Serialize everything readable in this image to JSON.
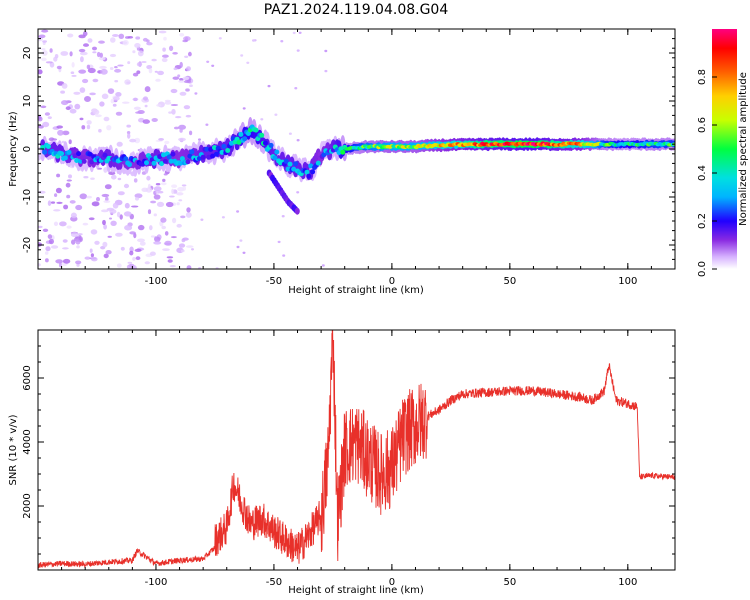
{
  "title": "PAZ1.2024.119.04.08.G04",
  "chart_data": [
    {
      "type": "heatmap",
      "xlabel": "Height of straight line (km)",
      "ylabel": "Frequency (Hz)",
      "xlim": [
        -150,
        120
      ],
      "ylim": [
        -25,
        25
      ],
      "xticks": [
        -100,
        -50,
        0,
        50,
        100
      ],
      "yticks": [
        -20,
        -10,
        0,
        10,
        20
      ],
      "colorbar": {
        "label": "Normalized spectral amplitude",
        "range": [
          0,
          1
        ],
        "ticks": [
          0.0,
          0.2,
          0.4,
          0.6,
          0.8
        ],
        "tick_labels": [
          "0.0",
          "0.2",
          "0.4",
          "0.6",
          "0.8"
        ],
        "colormap": [
          "#ffffff",
          "#d7b3ff",
          "#8a2be2",
          "#2000ff",
          "#00b4ff",
          "#00e0e0",
          "#00ff40",
          "#c8ff00",
          "#ffd000",
          "#ff6000",
          "#ff0000",
          "#ff0080"
        ]
      },
      "ridge": {
        "x": [
          -148,
          -140,
          -130,
          -120,
          -110,
          -100,
          -90,
          -80,
          -70,
          -65,
          -60,
          -55,
          -50,
          -45,
          -40,
          -35,
          -30,
          -25,
          -20,
          -10,
          0,
          10,
          20,
          40,
          60,
          80,
          90,
          100,
          110,
          120
        ],
        "frequency": [
          0,
          -1,
          -2,
          -2,
          -3,
          -2,
          -2,
          -1,
          0,
          2,
          4,
          2,
          -1,
          -3,
          -4,
          -5,
          -1,
          0,
          0,
          0.5,
          0.5,
          0.5,
          0.8,
          1,
          1,
          1,
          1,
          1,
          1,
          1
        ],
        "amplitude": [
          0.35,
          0.35,
          0.3,
          0.35,
          0.3,
          0.35,
          0.3,
          0.35,
          0.35,
          0.4,
          0.45,
          0.4,
          0.35,
          0.35,
          0.35,
          0.35,
          0.3,
          0.35,
          0.45,
          0.55,
          0.6,
          0.6,
          0.7,
          0.85,
          0.9,
          0.75,
          0.5,
          0.45,
          0.5,
          0.5
        ]
      },
      "branch": {
        "x": [
          -52,
          -48,
          -44,
          -40
        ],
        "frequency": [
          -5,
          -8,
          -11,
          -13
        ]
      }
    },
    {
      "type": "line",
      "xlabel": "Height of straight line (km)",
      "ylabel": "SNR (10 * v/v)",
      "xlim": [
        -150,
        120
      ],
      "ylim": [
        0,
        7500
      ],
      "xticks": [
        -100,
        -50,
        0,
        50,
        100
      ],
      "yticks": [
        2000,
        4000,
        6000
      ],
      "color": "#e8302a",
      "x": [
        -150,
        -140,
        -130,
        -120,
        -110,
        -108,
        -100,
        -90,
        -80,
        -75,
        -70,
        -67,
        -60,
        -55,
        -50,
        -45,
        -40,
        -35,
        -30,
        -27,
        -25,
        -23,
        -20,
        -15,
        -10,
        -5,
        0,
        5,
        10,
        15,
        20,
        25,
        30,
        40,
        50,
        60,
        70,
        80,
        85,
        90,
        92,
        95,
        100,
        104,
        105,
        110,
        120
      ],
      "y": [
        150,
        200,
        180,
        250,
        300,
        600,
        200,
        300,
        350,
        700,
        1100,
        2500,
        1200,
        1400,
        1000,
        700,
        400,
        900,
        1500,
        3500,
        7500,
        1500,
        3800,
        4000,
        3500,
        3000,
        3200,
        4200,
        4500,
        4800,
        5000,
        5300,
        5500,
        5550,
        5600,
        5600,
        5500,
        5400,
        5300,
        5600,
        6400,
        5300,
        5200,
        5100,
        2900,
        2950,
        2900
      ]
    }
  ]
}
